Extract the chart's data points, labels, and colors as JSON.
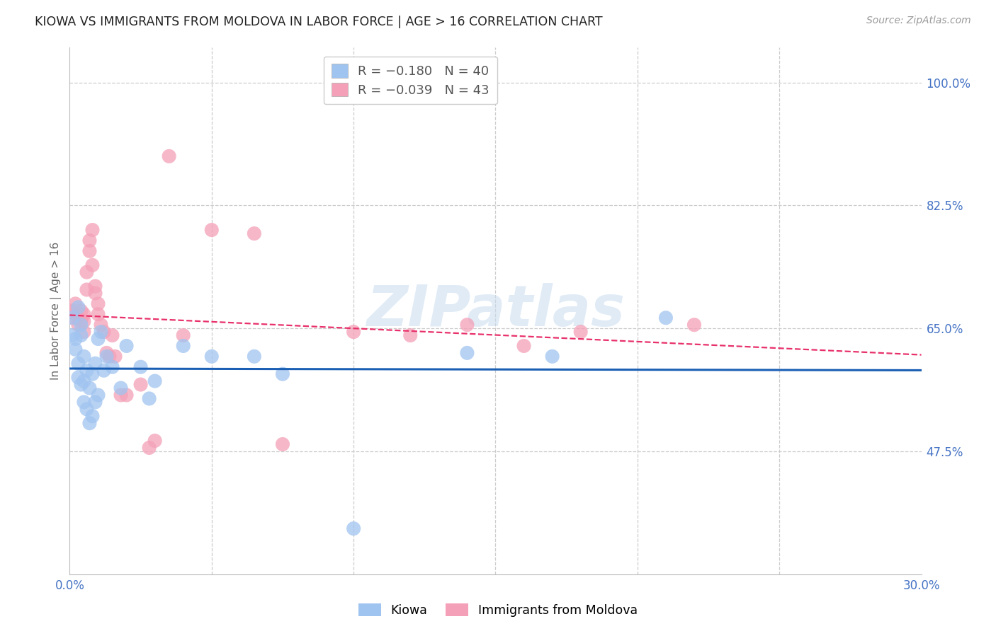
{
  "title": "KIOWA VS IMMIGRANTS FROM MOLDOVA IN LABOR FORCE | AGE > 16 CORRELATION CHART",
  "source": "Source: ZipAtlas.com",
  "ylabel": "In Labor Force | Age > 16",
  "xlim": [
    0.0,
    0.3
  ],
  "ylim": [
    0.3,
    1.05
  ],
  "kiowa_color": "#a0c4f0",
  "moldova_color": "#f4a0b8",
  "kiowa_line_color": "#1a5fb4",
  "moldova_line_color": "#e8306a",
  "legend_R_kiowa": "R = -0.180",
  "legend_N_kiowa": "N = 40",
  "legend_R_moldova": "R = -0.039",
  "legend_N_moldova": "N = 43",
  "watermark": "ZIPatlas",
  "kiowa_x": [
    0.001,
    0.001,
    0.002,
    0.002,
    0.003,
    0.003,
    0.003,
    0.004,
    0.004,
    0.004,
    0.005,
    0.005,
    0.005,
    0.006,
    0.006,
    0.007,
    0.007,
    0.008,
    0.008,
    0.009,
    0.009,
    0.01,
    0.01,
    0.011,
    0.012,
    0.013,
    0.015,
    0.018,
    0.02,
    0.025,
    0.028,
    0.03,
    0.04,
    0.05,
    0.065,
    0.075,
    0.1,
    0.14,
    0.17,
    0.21
  ],
  "kiowa_y": [
    0.665,
    0.64,
    0.635,
    0.62,
    0.6,
    0.58,
    0.68,
    0.57,
    0.64,
    0.655,
    0.545,
    0.575,
    0.61,
    0.535,
    0.59,
    0.515,
    0.565,
    0.525,
    0.585,
    0.545,
    0.6,
    0.555,
    0.635,
    0.645,
    0.59,
    0.61,
    0.595,
    0.565,
    0.625,
    0.595,
    0.55,
    0.575,
    0.625,
    0.61,
    0.61,
    0.585,
    0.365,
    0.615,
    0.61,
    0.665
  ],
  "moldova_x": [
    0.001,
    0.001,
    0.002,
    0.002,
    0.003,
    0.003,
    0.004,
    0.004,
    0.005,
    0.005,
    0.005,
    0.006,
    0.006,
    0.007,
    0.007,
    0.008,
    0.008,
    0.009,
    0.009,
    0.01,
    0.01,
    0.011,
    0.012,
    0.013,
    0.014,
    0.015,
    0.016,
    0.018,
    0.02,
    0.025,
    0.028,
    0.03,
    0.035,
    0.04,
    0.05,
    0.065,
    0.075,
    0.1,
    0.12,
    0.14,
    0.16,
    0.18,
    0.22
  ],
  "moldova_y": [
    0.665,
    0.675,
    0.67,
    0.685,
    0.655,
    0.665,
    0.66,
    0.675,
    0.645,
    0.66,
    0.67,
    0.705,
    0.73,
    0.76,
    0.775,
    0.74,
    0.79,
    0.7,
    0.71,
    0.67,
    0.685,
    0.655,
    0.645,
    0.615,
    0.61,
    0.64,
    0.61,
    0.555,
    0.555,
    0.57,
    0.48,
    0.49,
    0.895,
    0.64,
    0.79,
    0.785,
    0.485,
    0.645,
    0.64,
    0.655,
    0.625,
    0.645,
    0.655
  ]
}
